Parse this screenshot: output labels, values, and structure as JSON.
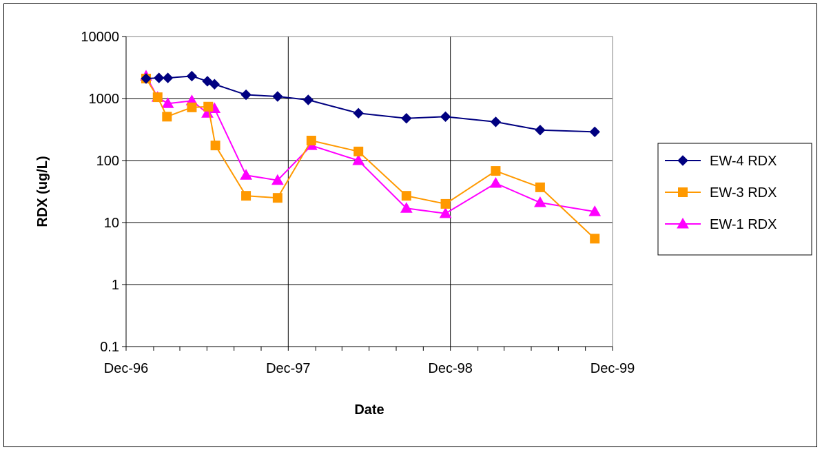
{
  "chart_data": {
    "type": "line",
    "title": "",
    "xlabel": "Date",
    "ylabel": "RDX (ug/L)",
    "y_scale": "log",
    "ylim": [
      0.1,
      10000
    ],
    "y_ticks": [
      {
        "value": 0.1,
        "label": "0.1"
      },
      {
        "value": 1,
        "label": "1"
      },
      {
        "value": 10,
        "label": "10"
      },
      {
        "value": 100,
        "label": "100"
      },
      {
        "value": 1000,
        "label": "1000"
      },
      {
        "value": 10000,
        "label": "10000"
      }
    ],
    "xlim": [
      "1996-12-01",
      "1999-12-01"
    ],
    "x_ticks": [
      {
        "value": "1996-12-01",
        "label": "Dec-96"
      },
      {
        "value": "1997-12-01",
        "label": "Dec-97"
      },
      {
        "value": "1998-12-01",
        "label": "Dec-98"
      },
      {
        "value": "1999-12-01",
        "label": "Dec-99"
      }
    ],
    "grid": true,
    "legend_position": "right",
    "series": [
      {
        "name": "EW-4 RDX",
        "color": "#000080",
        "marker": "diamond",
        "points": [
          {
            "x": "1997-01-15",
            "y": 2100
          },
          {
            "x": "1997-02-13",
            "y": 2150
          },
          {
            "x": "1997-03-05",
            "y": 2150
          },
          {
            "x": "1997-04-28",
            "y": 2300
          },
          {
            "x": "1997-06-02",
            "y": 1900
          },
          {
            "x": "1997-06-18",
            "y": 1700
          },
          {
            "x": "1997-08-28",
            "y": 1150
          },
          {
            "x": "1997-11-07",
            "y": 1080
          },
          {
            "x": "1998-01-15",
            "y": 950
          },
          {
            "x": "1998-05-08",
            "y": 580
          },
          {
            "x": "1998-08-24",
            "y": 480
          },
          {
            "x": "1998-11-20",
            "y": 510
          },
          {
            "x": "1999-03-13",
            "y": 420
          },
          {
            "x": "1999-06-21",
            "y": 310
          },
          {
            "x": "1999-10-22",
            "y": 290
          }
        ]
      },
      {
        "name": "EW-3 RDX",
        "color": "#FF9900",
        "marker": "square",
        "points": [
          {
            "x": "1997-01-15",
            "y": 2100
          },
          {
            "x": "1997-02-10",
            "y": 1050
          },
          {
            "x": "1997-03-03",
            "y": 510
          },
          {
            "x": "1997-04-28",
            "y": 720
          },
          {
            "x": "1997-06-04",
            "y": 740
          },
          {
            "x": "1997-06-20",
            "y": 175
          },
          {
            "x": "1997-08-28",
            "y": 27
          },
          {
            "x": "1997-11-07",
            "y": 25
          },
          {
            "x": "1998-01-22",
            "y": 210
          },
          {
            "x": "1998-05-08",
            "y": 140
          },
          {
            "x": "1998-08-24",
            "y": 27
          },
          {
            "x": "1998-11-20",
            "y": 20
          },
          {
            "x": "1999-03-13",
            "y": 68
          },
          {
            "x": "1999-06-21",
            "y": 37
          },
          {
            "x": "1999-10-22",
            "y": 5.5
          }
        ]
      },
      {
        "name": "EW-1 RDX",
        "color": "#FF00FF",
        "marker": "triangle",
        "points": [
          {
            "x": "1997-01-15",
            "y": 2300
          },
          {
            "x": "1997-02-10",
            "y": 1050
          },
          {
            "x": "1997-03-05",
            "y": 830
          },
          {
            "x": "1997-04-28",
            "y": 920
          },
          {
            "x": "1997-06-02",
            "y": 580
          },
          {
            "x": "1997-06-18",
            "y": 690
          },
          {
            "x": "1997-08-28",
            "y": 58
          },
          {
            "x": "1997-11-07",
            "y": 48
          },
          {
            "x": "1998-01-22",
            "y": 175
          },
          {
            "x": "1998-05-08",
            "y": 100
          },
          {
            "x": "1998-08-24",
            "y": 17
          },
          {
            "x": "1998-11-20",
            "y": 14
          },
          {
            "x": "1999-03-13",
            "y": 43
          },
          {
            "x": "1999-06-21",
            "y": 21
          },
          {
            "x": "1999-10-22",
            "y": 15
          }
        ]
      }
    ]
  }
}
